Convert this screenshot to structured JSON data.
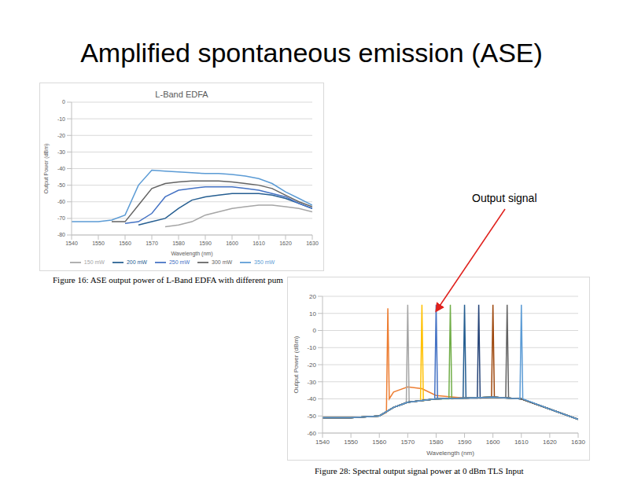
{
  "title": "Amplified spontaneous emission (ASE)",
  "annotation": "Output signal",
  "chart_data": [
    {
      "type": "line",
      "title": "L-Band EDFA",
      "caption": "Figure 16: ASE output power of L-Band EDFA with different pum",
      "x_label": "Wavelength (nm)",
      "y_label": "Output Power (dBm)",
      "x": [
        1540,
        1545,
        1550,
        1555,
        1560,
        1565,
        1570,
        1575,
        1580,
        1585,
        1590,
        1595,
        1600,
        1605,
        1610,
        1615,
        1620,
        1625,
        1630
      ],
      "xlim": [
        1540,
        1630
      ],
      "xticks": [
        1540,
        1550,
        1560,
        1570,
        1580,
        1590,
        1600,
        1610,
        1620,
        1630
      ],
      "ylim": [
        -80,
        0
      ],
      "yticks": [
        -80,
        -70,
        -60,
        -50,
        -40,
        -30,
        -20,
        -10,
        0
      ],
      "grid": true,
      "legend": "bottom",
      "series": [
        {
          "name": "150 mW",
          "color": "#a5a5a5",
          "values": [
            null,
            null,
            null,
            null,
            null,
            null,
            null,
            -75,
            -74,
            -72,
            -68,
            -66,
            -64,
            -63,
            -62,
            -62,
            -63,
            -64,
            -66
          ]
        },
        {
          "name": "200 mW",
          "color": "#255e91",
          "values": [
            null,
            null,
            null,
            null,
            null,
            -74,
            -72,
            -70,
            -64,
            -59,
            -57,
            -56,
            -55,
            -55,
            -55,
            -56,
            -58,
            -61,
            -64
          ]
        },
        {
          "name": "250 mW",
          "color": "#4472c4",
          "values": [
            null,
            null,
            null,
            null,
            -73,
            -72,
            -67,
            -57,
            -53,
            -52,
            -51,
            -51,
            -51,
            -52,
            -53,
            -55,
            -57,
            -61,
            -64
          ]
        },
        {
          "name": "300 mW",
          "color": "#636363",
          "values": [
            null,
            null,
            null,
            -72,
            -72,
            -62,
            -52,
            -49,
            -48,
            -47.5,
            -47.5,
            -47.5,
            -48,
            -49,
            -50,
            -52,
            -56,
            -60,
            -63
          ]
        },
        {
          "name": "350 mW",
          "color": "#5b9bd5",
          "values": [
            -72,
            -72,
            -72,
            -71,
            -68,
            -50,
            -41,
            -41.5,
            -42,
            -42.5,
            -43,
            -43,
            -43.5,
            -44.5,
            -46,
            -49,
            -54,
            -58,
            -62
          ]
        }
      ]
    },
    {
      "type": "line",
      "caption": "Figure 28: Spectral output signal power at 0 dBm TLS Input",
      "x_label": "Wavelength (nm)",
      "y_label": "Output Power (dBm)",
      "xlim": [
        1540,
        1630
      ],
      "xticks": [
        1540,
        1550,
        1560,
        1570,
        1580,
        1590,
        1600,
        1610,
        1620,
        1630
      ],
      "ylim": [
        -60,
        20
      ],
      "yticks": [
        -60,
        -50,
        -40,
        -30,
        -20,
        -10,
        0,
        10,
        20
      ],
      "grid": true,
      "series": [
        {
          "color": "#ed7d31",
          "x": [
            1540,
            1550,
            1560,
            1562.5,
            1563,
            1563.5,
            1565,
            1570,
            1575,
            1580,
            1590,
            1600,
            1610,
            1620,
            1630
          ],
          "values": [
            -51,
            -51,
            -50,
            -48,
            13,
            -40,
            -36,
            -33,
            -34,
            -38,
            -39.5,
            -39,
            -40,
            -46,
            -52
          ]
        },
        {
          "color": "#a5a5a5",
          "x": [
            1540,
            1550,
            1560,
            1565,
            1569.5,
            1570,
            1570.5,
            1580,
            1590,
            1600,
            1610,
            1620,
            1630
          ],
          "values": [
            -51,
            -51,
            -50,
            -45,
            -42,
            15,
            -42,
            -40,
            -39.5,
            -39,
            -40,
            -46,
            -52
          ]
        },
        {
          "color": "#ffc000",
          "x": [
            1540,
            1550,
            1560,
            1565,
            1570,
            1574.5,
            1575,
            1575.5,
            1580,
            1590,
            1600,
            1610,
            1620,
            1630
          ],
          "values": [
            -51,
            -51,
            -50,
            -45,
            -42,
            -41,
            15,
            -41,
            -40,
            -39.5,
            -39,
            -40,
            -46,
            -52
          ]
        },
        {
          "color": "#4472c4",
          "x": [
            1540,
            1550,
            1560,
            1565,
            1570,
            1579.5,
            1580,
            1580.5,
            1590,
            1600,
            1610,
            1620,
            1630
          ],
          "values": [
            -51,
            -51,
            -50,
            -45,
            -42,
            -40,
            15,
            -40,
            -39.5,
            -39,
            -40,
            -46,
            -52
          ]
        },
        {
          "color": "#70ad47",
          "x": [
            1540,
            1550,
            1560,
            1565,
            1570,
            1580,
            1584.5,
            1585,
            1585.5,
            1590,
            1600,
            1610,
            1620,
            1630
          ],
          "values": [
            -51,
            -51,
            -50,
            -45,
            -42,
            -40,
            -40,
            15,
            -40,
            -39.5,
            -39,
            -40,
            -46,
            -52
          ]
        },
        {
          "color": "#255e91",
          "x": [
            1540,
            1550,
            1560,
            1565,
            1570,
            1580,
            1589.5,
            1590,
            1590.5,
            1600,
            1610,
            1620,
            1630
          ],
          "values": [
            -51,
            -51,
            -50,
            -45,
            -42,
            -40,
            -39.5,
            15,
            -39.5,
            -39,
            -40,
            -46,
            -52
          ]
        },
        {
          "color": "#264478",
          "x": [
            1540,
            1550,
            1560,
            1565,
            1570,
            1580,
            1590,
            1594.5,
            1595,
            1595.5,
            1600,
            1610,
            1620,
            1630
          ],
          "values": [
            -51,
            -51,
            -50,
            -45,
            -42,
            -40,
            -39.5,
            -39.5,
            15,
            -39.5,
            -39,
            -40,
            -46,
            -52
          ]
        },
        {
          "color": "#9e480e",
          "x": [
            1540,
            1550,
            1560,
            1565,
            1570,
            1580,
            1590,
            1599.5,
            1600,
            1600.5,
            1610,
            1620,
            1630
          ],
          "values": [
            -51,
            -51,
            -50,
            -45,
            -42,
            -40,
            -39.5,
            -39,
            15,
            -39,
            -40,
            -46,
            -52
          ]
        },
        {
          "color": "#636363",
          "x": [
            1540,
            1550,
            1560,
            1565,
            1570,
            1580,
            1590,
            1600,
            1604.5,
            1605,
            1605.5,
            1610,
            1620,
            1630
          ],
          "values": [
            -51,
            -51,
            -50,
            -45,
            -42,
            -40,
            -39.5,
            -39,
            -39.5,
            15,
            -39.5,
            -40,
            -46,
            -52
          ]
        },
        {
          "color": "#5b9bd5",
          "x": [
            1540,
            1550,
            1560,
            1565,
            1570,
            1580,
            1590,
            1600,
            1609.5,
            1610,
            1610.5,
            1620,
            1630
          ],
          "values": [
            -51,
            -51,
            -50,
            -45,
            -42,
            -40,
            -39.5,
            -39,
            -40,
            15,
            -40,
            -46,
            -52
          ]
        }
      ]
    }
  ]
}
